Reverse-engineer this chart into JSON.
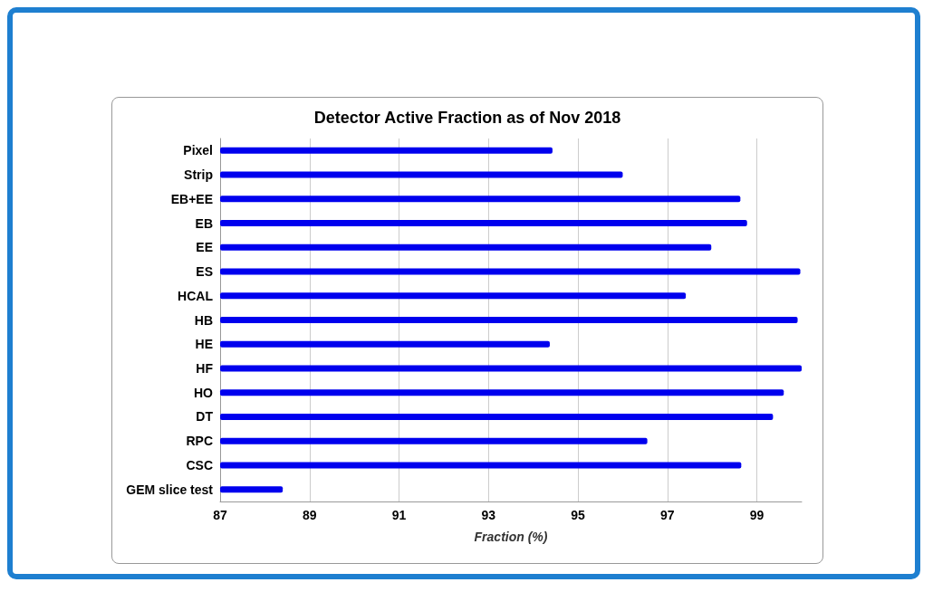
{
  "chart_data": {
    "type": "bar",
    "orientation": "horizontal",
    "title": "Detector Active Fraction as of Nov 2018",
    "xlabel": "Fraction (%)",
    "categories": [
      "Pixel",
      "Strip",
      "EB+EE",
      "EB",
      "EE",
      "ES",
      "HCAL",
      "HB",
      "HE",
      "HF",
      "HO",
      "DT",
      "RPC",
      "CSC",
      "GEM slice test"
    ],
    "values": [
      94.43,
      96.0,
      98.63,
      98.78,
      97.98,
      99.97,
      97.41,
      99.91,
      94.37,
      100,
      99.6,
      99.36,
      96.55,
      98.65,
      88.4
    ],
    "color": "#0000ee",
    "xlim": [
      87,
      100
    ],
    "xticks": [
      87,
      89,
      91,
      93,
      95,
      97,
      99
    ],
    "grid": "x"
  }
}
